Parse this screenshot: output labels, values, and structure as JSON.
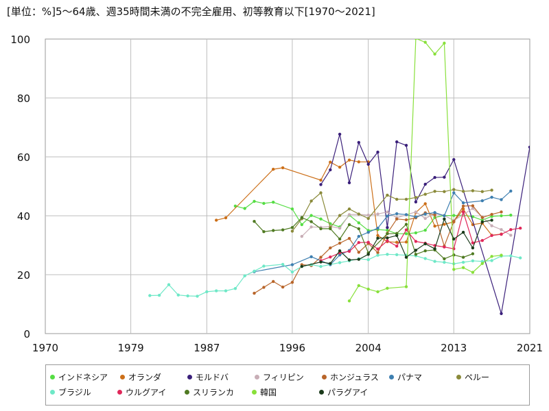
{
  "chart_data": {
    "type": "line",
    "title": "[単位：%]5～64歳、週35時間未満の不完全雇用、初等教育以下[1970～2021]",
    "xlabel": "",
    "ylabel": "",
    "xlim": [
      1970,
      2021
    ],
    "ylim": [
      0,
      100
    ],
    "xticks": [
      "1970",
      "1979",
      "1987",
      "1996",
      "2004",
      "2013",
      "2021"
    ],
    "yticks": [
      "0",
      "20",
      "40",
      "60",
      "80",
      "100"
    ],
    "grid": true,
    "legend_position": "bottom",
    "series": [
      {
        "name": "インドネシア",
        "color": "#55dd44",
        "points": [
          [
            1990,
            43.3
          ],
          [
            1991,
            42.5
          ],
          [
            1992,
            44.9
          ],
          [
            1993,
            44.2
          ],
          [
            1994,
            44.6
          ],
          [
            1996,
            42.3
          ],
          [
            1997,
            37.0
          ],
          [
            1998,
            40.1
          ],
          [
            1999,
            38.9
          ],
          [
            2000,
            37.3
          ],
          [
            2001,
            36.2
          ],
          [
            2002,
            40.2
          ],
          [
            2003,
            37.6
          ],
          [
            2004,
            35.0
          ],
          [
            2005,
            35.3
          ],
          [
            2006,
            35.1
          ],
          [
            2007,
            33.9
          ],
          [
            2008,
            33.9
          ],
          [
            2009,
            34.2
          ],
          [
            2010,
            35.1
          ],
          [
            2011,
            39.4
          ],
          [
            2012,
            40.1
          ],
          [
            2013,
            40.1
          ],
          [
            2014,
            40.2
          ],
          [
            2015,
            39.7
          ],
          [
            2016,
            38.5
          ],
          [
            2017,
            39.8
          ],
          [
            2018,
            40.0
          ],
          [
            2019,
            40.2
          ]
        ]
      },
      {
        "name": "オランダ",
        "color": "#cc6f18",
        "points": [
          [
            1988,
            38.5
          ],
          [
            1989,
            39.3
          ],
          [
            1994,
            55.8
          ],
          [
            1995,
            56.3
          ],
          [
            1999,
            52.1
          ],
          [
            2000,
            58.2
          ],
          [
            2001,
            56.5
          ],
          [
            2002,
            58.9
          ],
          [
            2003,
            58.3
          ],
          [
            2004,
            58.3
          ],
          [
            2005,
            33.3
          ],
          [
            2006,
            31.2
          ],
          [
            2007,
            31.0
          ],
          [
            2008,
            31.1
          ],
          [
            2009,
            41.1
          ],
          [
            2010,
            44.1
          ],
          [
            2011,
            36.5
          ],
          [
            2012,
            37.1
          ],
          [
            2013,
            37.9
          ],
          [
            2014,
            42.3
          ],
          [
            2015,
            37.0
          ],
          [
            2016,
            37.5
          ],
          [
            2017,
            33.4
          ],
          [
            2018,
            33.8
          ]
        ]
      },
      {
        "name": "モルドバ",
        "color": "#3a1f7a",
        "points": [
          [
            1999,
            50.6
          ],
          [
            2000,
            55.6
          ],
          [
            2001,
            67.7
          ],
          [
            2002,
            51.2
          ],
          [
            2003,
            64.9
          ],
          [
            2004,
            57.5
          ],
          [
            2005,
            61.6
          ],
          [
            2006,
            36.0
          ],
          [
            2007,
            65.1
          ],
          [
            2008,
            63.9
          ],
          [
            2009,
            44.7
          ],
          [
            2010,
            50.7
          ],
          [
            2011,
            53.0
          ],
          [
            2012,
            53.1
          ],
          [
            2013,
            59.1
          ],
          [
            2018,
            6.8
          ],
          [
            2021,
            63.3
          ]
        ]
      },
      {
        "name": "フィリピン",
        "color": "#c8aeb6",
        "points": [
          [
            1997,
            33.0
          ],
          [
            1998,
            36.2
          ],
          [
            1999,
            36.1
          ],
          [
            2000,
            36.4
          ],
          [
            2001,
            35.8
          ],
          [
            2002,
            40.4
          ],
          [
            2003,
            40.5
          ],
          [
            2004,
            40.2
          ],
          [
            2005,
            40.6
          ],
          [
            2006,
            41.3
          ],
          [
            2007,
            39.3
          ],
          [
            2008,
            40.3
          ],
          [
            2009,
            41.3
          ],
          [
            2010,
            39.1
          ],
          [
            2011,
            40.7
          ],
          [
            2012,
            40.1
          ],
          [
            2013,
            38.4
          ],
          [
            2014,
            40.4
          ],
          [
            2015,
            42.5
          ],
          [
            2016,
            39.6
          ],
          [
            2017,
            36.6
          ],
          [
            2018,
            35.3
          ],
          [
            2019,
            33.4
          ]
        ]
      },
      {
        "name": "ホンジュラス",
        "color": "#b8652a",
        "points": [
          [
            1992,
            13.7
          ],
          [
            1993,
            15.7
          ],
          [
            1994,
            17.7
          ],
          [
            1995,
            15.8
          ],
          [
            1996,
            17.4
          ],
          [
            1997,
            23.4
          ],
          [
            1998,
            23.1
          ],
          [
            1999,
            25.9
          ],
          [
            2000,
            29.1
          ],
          [
            2001,
            30.7
          ],
          [
            2002,
            32.3
          ],
          [
            2003,
            27.6
          ],
          [
            2004,
            30.6
          ],
          [
            2005,
            27.5
          ],
          [
            2006,
            34.1
          ],
          [
            2007,
            38.9
          ],
          [
            2008,
            38.6
          ],
          [
            2009,
            39.3
          ],
          [
            2010,
            41.0
          ],
          [
            2011,
            40.3
          ],
          [
            2012,
            29.7
          ],
          [
            2013,
            38.1
          ],
          [
            2014,
            43.3
          ],
          [
            2015,
            43.4
          ],
          [
            2016,
            39.4
          ],
          [
            2017,
            40.5
          ],
          [
            2018,
            41.3
          ]
        ]
      },
      {
        "name": "パナマ",
        "color": "#3e7fb0",
        "points": [
          [
            1992,
            21.0
          ],
          [
            1996,
            23.4
          ],
          [
            1998,
            26.1
          ],
          [
            2000,
            23.4
          ],
          [
            2001,
            26.7
          ],
          [
            2002,
            28.2
          ],
          [
            2003,
            33.0
          ],
          [
            2004,
            34.4
          ],
          [
            2005,
            35.8
          ],
          [
            2006,
            39.9
          ],
          [
            2007,
            40.7
          ],
          [
            2008,
            40.4
          ],
          [
            2009,
            39.6
          ],
          [
            2010,
            40.6
          ],
          [
            2011,
            41.1
          ],
          [
            2012,
            40.0
          ],
          [
            2013,
            47.8
          ],
          [
            2014,
            44.4
          ],
          [
            2016,
            45.1
          ],
          [
            2017,
            46.3
          ],
          [
            2018,
            45.5
          ],
          [
            2019,
            48.4
          ]
        ]
      },
      {
        "name": "ペルー",
        "color": "#8a8a3a",
        "points": [
          [
            1996,
            34.8
          ],
          [
            1997,
            39.0
          ],
          [
            1998,
            45.0
          ],
          [
            1999,
            47.8
          ],
          [
            2000,
            36.0
          ],
          [
            2001,
            40.1
          ],
          [
            2002,
            42.3
          ],
          [
            2003,
            40.6
          ],
          [
            2004,
            39.1
          ],
          [
            2006,
            47.0
          ],
          [
            2007,
            45.6
          ],
          [
            2008,
            45.6
          ],
          [
            2009,
            46.2
          ],
          [
            2010,
            47.3
          ],
          [
            2011,
            48.3
          ],
          [
            2012,
            48.2
          ],
          [
            2013,
            48.9
          ],
          [
            2014,
            48.3
          ],
          [
            2015,
            48.5
          ],
          [
            2016,
            48.2
          ],
          [
            2017,
            48.7
          ]
        ]
      },
      {
        "name": "ブラジル",
        "color": "#6ee8c7",
        "points": [
          [
            1981,
            12.9
          ],
          [
            1982,
            13.0
          ],
          [
            1983,
            16.6
          ],
          [
            1984,
            13.1
          ],
          [
            1985,
            12.8
          ],
          [
            1986,
            12.7
          ],
          [
            1987,
            14.2
          ],
          [
            1988,
            14.5
          ],
          [
            1989,
            14.5
          ],
          [
            1990,
            15.3
          ],
          [
            1991,
            19.6
          ],
          [
            1992,
            21.2
          ],
          [
            1993,
            22.9
          ],
          [
            1995,
            23.5
          ],
          [
            1996,
            20.9
          ],
          [
            1997,
            22.8
          ],
          [
            1998,
            23.4
          ],
          [
            1999,
            22.8
          ],
          [
            2001,
            24.1
          ],
          [
            2002,
            24.7
          ],
          [
            2003,
            25.4
          ],
          [
            2004,
            25.1
          ],
          [
            2005,
            26.6
          ],
          [
            2006,
            26.9
          ],
          [
            2007,
            26.8
          ],
          [
            2008,
            26.6
          ],
          [
            2009,
            26.4
          ],
          [
            2010,
            25.5
          ],
          [
            2011,
            24.5
          ],
          [
            2012,
            24.2
          ],
          [
            2013,
            23.7
          ],
          [
            2014,
            24.2
          ],
          [
            2015,
            24.7
          ],
          [
            2016,
            24.5
          ],
          [
            2017,
            24.8
          ],
          [
            2018,
            26.3
          ],
          [
            2019,
            26.4
          ],
          [
            2020,
            25.7
          ]
        ]
      },
      {
        "name": "ウルグアイ",
        "color": "#e0285a",
        "points": [
          [
            1999,
            24.8
          ],
          [
            2000,
            26.0
          ],
          [
            2001,
            27.4
          ],
          [
            2002,
            27.9
          ],
          [
            2003,
            30.9
          ],
          [
            2004,
            31.0
          ],
          [
            2005,
            28.7
          ],
          [
            2006,
            31.5
          ],
          [
            2007,
            29.7
          ],
          [
            2008,
            35.2
          ],
          [
            2009,
            31.3
          ],
          [
            2010,
            30.7
          ],
          [
            2011,
            29.9
          ],
          [
            2012,
            29.4
          ],
          [
            2013,
            28.8
          ],
          [
            2014,
            41.3
          ],
          [
            2015,
            30.8
          ],
          [
            2016,
            31.6
          ],
          [
            2017,
            33.3
          ],
          [
            2018,
            33.7
          ],
          [
            2019,
            35.3
          ],
          [
            2020,
            35.8
          ]
        ]
      },
      {
        "name": "スリランカ",
        "color": "#4f7a22",
        "points": [
          [
            1992,
            38.1
          ],
          [
            1993,
            34.6
          ],
          [
            1994,
            35.0
          ],
          [
            1995,
            35.2
          ],
          [
            1996,
            36.0
          ],
          [
            1997,
            39.4
          ],
          [
            1998,
            38.0
          ],
          [
            1999,
            35.6
          ],
          [
            2000,
            35.6
          ],
          [
            2001,
            32.1
          ],
          [
            2002,
            37.0
          ],
          [
            2003,
            35.6
          ],
          [
            2004,
            27.4
          ],
          [
            2006,
            33.9
          ],
          [
            2007,
            34.0
          ],
          [
            2008,
            37.1
          ],
          [
            2009,
            26.9
          ],
          [
            2010,
            28.1
          ],
          [
            2011,
            28.4
          ],
          [
            2012,
            25.4
          ],
          [
            2013,
            26.7
          ],
          [
            2014,
            25.9
          ],
          [
            2015,
            27.1
          ]
        ]
      },
      {
        "name": "韓国",
        "color": "#88e03a",
        "points": [
          [
            2002,
            11.1
          ],
          [
            2003,
            16.3
          ],
          [
            2004,
            15.1
          ],
          [
            2005,
            14.2
          ],
          [
            2006,
            15.4
          ],
          [
            2008,
            15.9
          ],
          [
            2009,
            100.2
          ],
          [
            2010,
            98.9
          ],
          [
            2011,
            94.9
          ],
          [
            2012,
            98.6
          ],
          [
            2013,
            21.8
          ],
          [
            2014,
            22.4
          ],
          [
            2015,
            20.8
          ],
          [
            2016,
            23.8
          ],
          [
            2017,
            26.2
          ],
          [
            2018,
            26.6
          ]
        ]
      },
      {
        "name": "パラグアイ",
        "color": "#1a3a1a",
        "points": [
          [
            1997,
            22.8
          ],
          [
            1999,
            24.3
          ],
          [
            2000,
            23.8
          ],
          [
            2001,
            28.1
          ],
          [
            2002,
            25.0
          ],
          [
            2003,
            25.2
          ],
          [
            2004,
            26.9
          ],
          [
            2005,
            32.4
          ],
          [
            2006,
            32.5
          ],
          [
            2007,
            33.3
          ],
          [
            2008,
            25.9
          ],
          [
            2009,
            28.3
          ],
          [
            2010,
            30.5
          ],
          [
            2011,
            28.8
          ],
          [
            2012,
            38.9
          ],
          [
            2013,
            32.1
          ],
          [
            2014,
            34.4
          ],
          [
            2015,
            29.1
          ],
          [
            2016,
            37.9
          ],
          [
            2017,
            38.5
          ]
        ]
      }
    ]
  }
}
